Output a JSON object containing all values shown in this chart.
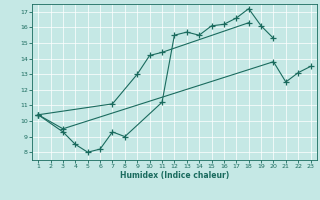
{
  "title": "",
  "xlabel": "Humidex (Indice chaleur)",
  "bg_color": "#c5e8e5",
  "line_color": "#1a6b5e",
  "grid_color": "#ffffff",
  "xlim": [
    0.5,
    23.5
  ],
  "ylim": [
    7.5,
    17.5
  ],
  "xticks": [
    1,
    2,
    3,
    4,
    5,
    6,
    7,
    8,
    9,
    10,
    11,
    12,
    13,
    14,
    15,
    16,
    17,
    18,
    19,
    20,
    21,
    22,
    23
  ],
  "yticks": [
    8,
    9,
    10,
    11,
    12,
    13,
    14,
    15,
    16,
    17
  ],
  "line1_x": [
    1,
    3,
    4,
    5,
    6,
    7,
    8,
    11,
    12,
    13,
    14,
    15,
    16,
    17,
    18,
    19,
    20
  ],
  "line1_y": [
    10.4,
    9.3,
    8.5,
    8.0,
    8.2,
    9.3,
    9.0,
    11.2,
    15.5,
    15.7,
    15.5,
    16.1,
    16.2,
    16.6,
    17.2,
    16.1,
    15.3
  ],
  "line2_x": [
    1,
    7,
    9,
    10,
    11,
    18
  ],
  "line2_y": [
    10.4,
    11.1,
    13.0,
    14.2,
    14.4,
    16.3
  ],
  "line3_x": [
    1,
    3,
    20,
    21,
    22,
    23
  ],
  "line3_y": [
    10.4,
    9.5,
    13.8,
    12.5,
    13.1,
    13.5
  ]
}
